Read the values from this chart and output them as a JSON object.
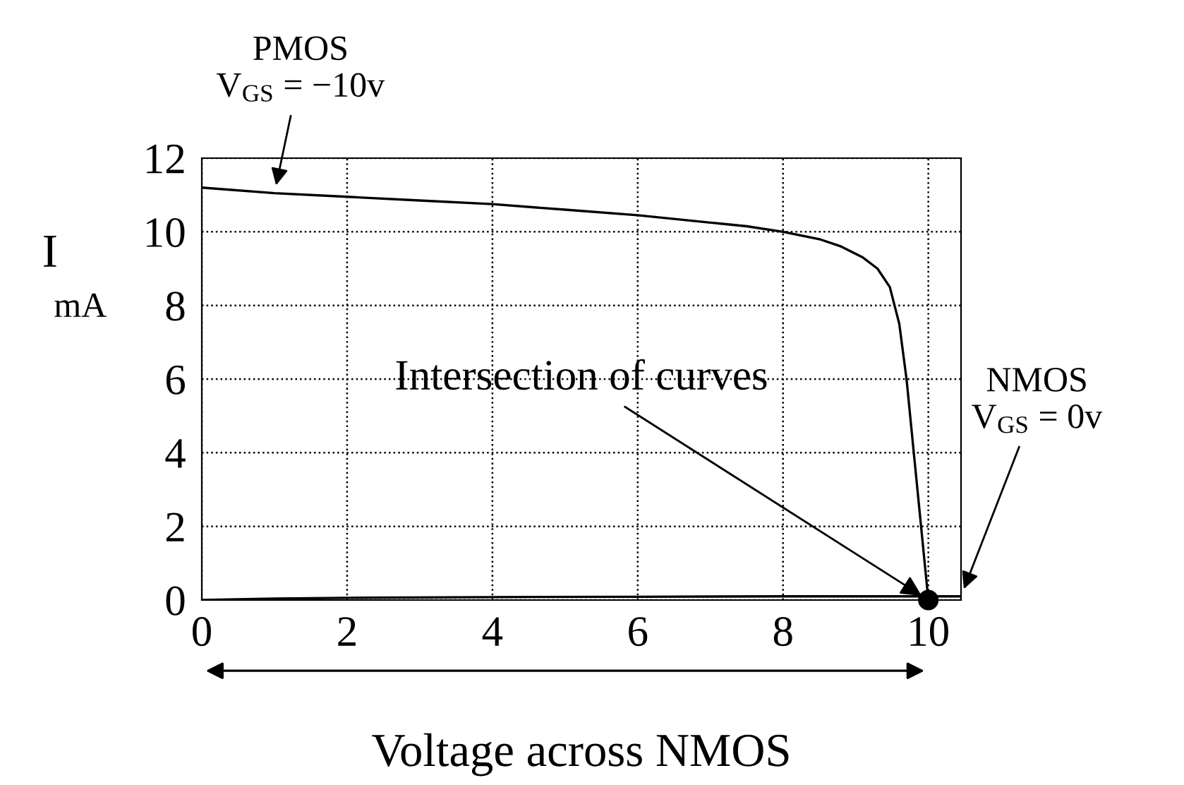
{
  "chart_data": {
    "type": "line",
    "xlabel": "Voltage across NMOS",
    "ylabel": "I\nmA",
    "xlim": [
      0,
      10.45
    ],
    "ylim": [
      0,
      12
    ],
    "xticks": [
      0,
      2,
      4,
      6,
      8,
      10
    ],
    "yticks": [
      0,
      2,
      4,
      6,
      8,
      10,
      12
    ],
    "grid": true,
    "line_style": "solid",
    "series": [
      {
        "color": "#000000",
        "x": [
          0,
          1,
          2,
          3,
          4,
          5,
          6,
          7,
          7.5,
          8,
          8.5,
          8.8,
          9.1,
          9.3,
          9.47,
          9.6,
          9.7,
          9.8,
          9.9,
          10.0
        ],
        "values": [
          11.2,
          11.05,
          10.95,
          10.85,
          10.75,
          10.6,
          10.45,
          10.25,
          10.15,
          10.0,
          9.8,
          9.6,
          9.3,
          9.0,
          8.5,
          7.5,
          6.0,
          4.0,
          2.0,
          0
        ]
      },
      {
        "color": "#000000",
        "x": [
          0,
          1,
          2,
          4,
          6,
          8,
          9,
          10,
          10.45
        ],
        "values": [
          0,
          0.04,
          0.06,
          0.08,
          0.09,
          0.1,
          0.1,
          0.1,
          0.1
        ]
      },
      {
        "type": "scatter",
        "color": "#000000",
        "marker": "circle",
        "x": [
          10
        ],
        "values": [
          0
        ]
      }
    ],
    "annotations": [
      {
        "text": "PMOS\nV$_{GS}$ = −10v",
        "x": 1,
        "y": 11.05
      },
      {
        "text": "Intersection of curves",
        "x": 10,
        "y": 0
      },
      {
        "text": "NMOS\nV$_{GS}$ = 0v",
        "x": 10.45,
        "y": 0.1
      }
    ]
  }
}
